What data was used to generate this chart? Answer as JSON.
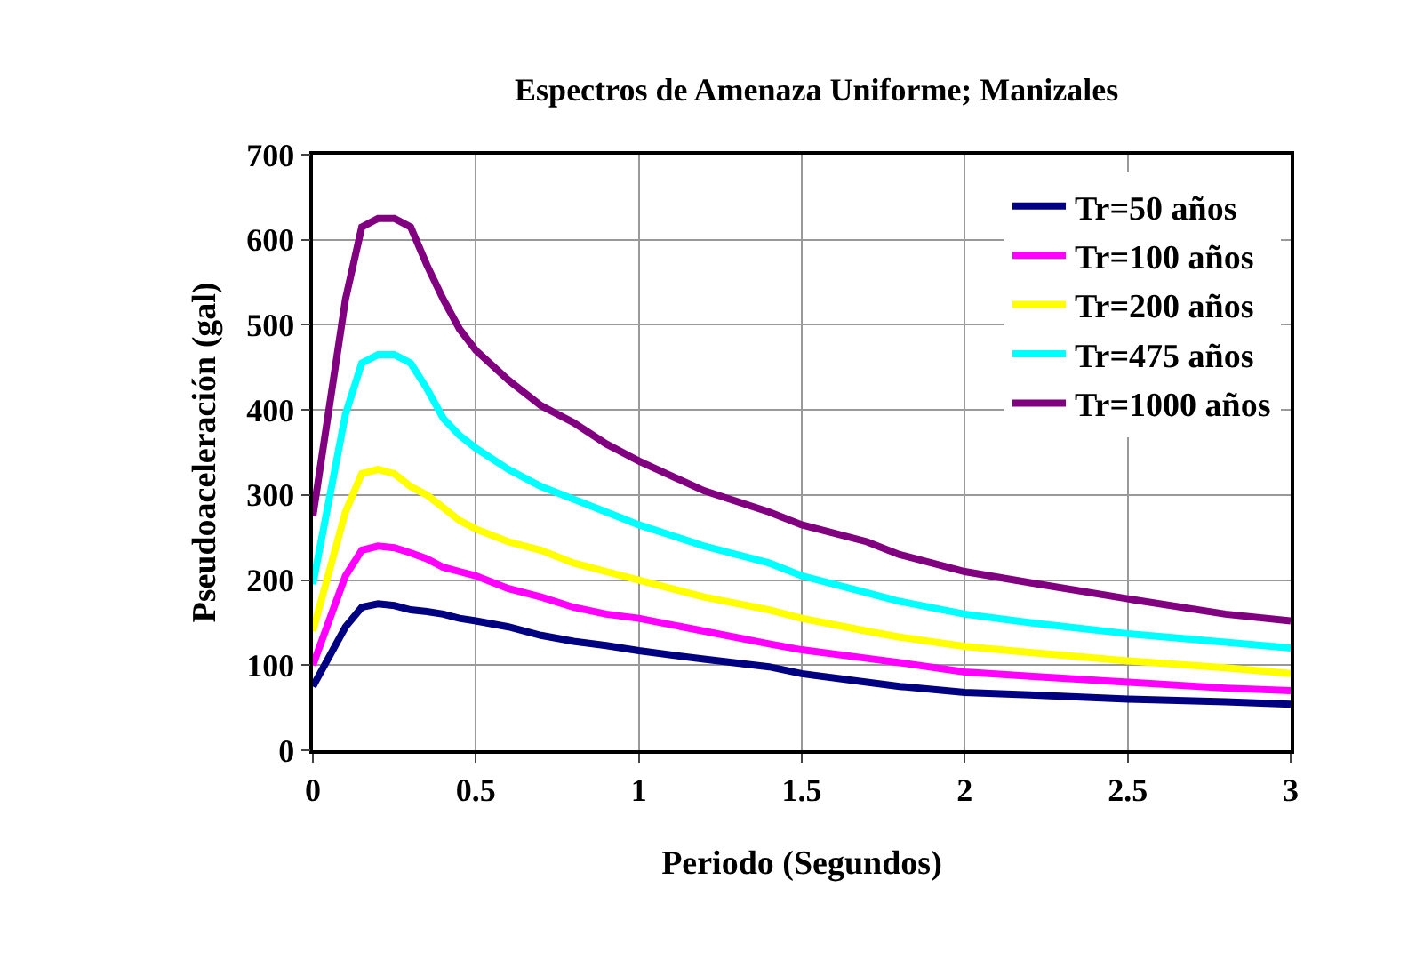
{
  "chart_data": {
    "type": "line",
    "title": "Espectros de Amenaza Uniforme; Manizales",
    "xlabel": "Periodo (Segundos)",
    "ylabel": "Pseudoaceleración (gal)",
    "x": [
      0,
      0.1,
      0.15,
      0.2,
      0.25,
      0.3,
      0.35,
      0.4,
      0.45,
      0.5,
      0.6,
      0.7,
      0.8,
      0.9,
      1.0,
      1.2,
      1.4,
      1.5,
      1.7,
      1.8,
      2.0,
      2.2,
      2.5,
      2.8,
      3.0
    ],
    "series": [
      {
        "name": "Tr=50 años",
        "color": "#000080",
        "values": [
          75,
          145,
          168,
          172,
          170,
          165,
          163,
          160,
          155,
          152,
          145,
          135,
          128,
          123,
          117,
          107,
          98,
          90,
          80,
          75,
          68,
          65,
          60,
          57,
          54
        ]
      },
      {
        "name": "Tr=100 años",
        "color": "#ff00ff",
        "values": [
          100,
          205,
          235,
          240,
          238,
          232,
          225,
          215,
          210,
          205,
          190,
          180,
          168,
          160,
          155,
          140,
          125,
          118,
          108,
          103,
          92,
          87,
          80,
          73,
          70
        ]
      },
      {
        "name": "Tr=200 años",
        "color": "#ffff00",
        "values": [
          140,
          280,
          325,
          330,
          325,
          310,
          300,
          285,
          270,
          260,
          245,
          235,
          220,
          210,
          200,
          180,
          165,
          155,
          140,
          133,
          122,
          115,
          105,
          97,
          90
        ]
      },
      {
        "name": "Tr=475 años",
        "color": "#00ffff",
        "values": [
          195,
          395,
          455,
          465,
          465,
          455,
          425,
          390,
          370,
          355,
          330,
          310,
          295,
          280,
          265,
          240,
          220,
          205,
          185,
          175,
          160,
          150,
          137,
          127,
          120
        ]
      },
      {
        "name": "Tr=1000 años",
        "color": "#800080",
        "values": [
          275,
          530,
          615,
          625,
          625,
          615,
          570,
          530,
          495,
          470,
          435,
          405,
          385,
          360,
          340,
          305,
          280,
          265,
          245,
          230,
          210,
          197,
          178,
          160,
          152
        ]
      }
    ],
    "xlim": [
      0,
      3
    ],
    "xticks": [
      0,
      0.5,
      1,
      1.5,
      2,
      2.5,
      3
    ],
    "ylim": [
      0,
      700
    ],
    "yticks": [
      0,
      100,
      200,
      300,
      400,
      500,
      600,
      700
    ],
    "grid": true,
    "legend": "top right",
    "marker": "none",
    "line_style": "solid"
  }
}
